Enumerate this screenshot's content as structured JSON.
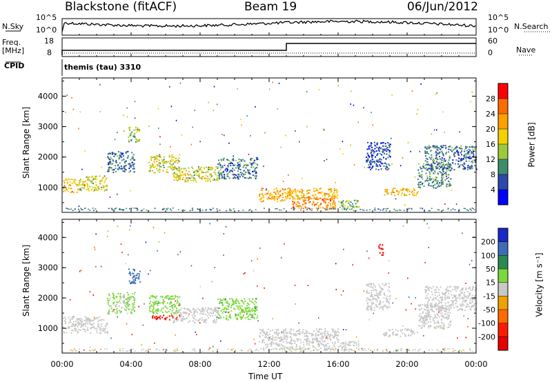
{
  "header": {
    "radar": "Blackstone (fitACF)",
    "beam": "Beam 19",
    "date": "06/Jun/2012"
  },
  "param_panel": {
    "nsky_label": "N.Sky",
    "nsearch_label": "N.Search",
    "freq_label_line1": "Freq.",
    "freq_label_line2": "[MHz]",
    "nave_label": "Nave",
    "cpid_label": "CPID",
    "cpid_value": "themis (tau) 3310",
    "noise_ticks": [
      "10^5",
      "10^0"
    ],
    "noise_ticks_right": [
      "10^5",
      "10^0"
    ],
    "freq_ticks": [
      "18",
      "8"
    ],
    "nave_ticks": [
      "60",
      "0"
    ],
    "freq_step_hour": 13.0
  },
  "colorbars": {
    "power": {
      "label": "Power [dB]",
      "ticks": [
        "28",
        "24",
        "20",
        "16",
        "12",
        "8",
        "4"
      ],
      "colors": [
        "#ff0000",
        "#ff6a00",
        "#ffa000",
        "#f4d000",
        "#9ec83c",
        "#3c8c6e",
        "#2c48a8",
        "#0000ff"
      ]
    },
    "velocity": {
      "label": "Velocity [m s⁻¹]",
      "ticks": [
        "200",
        "100",
        "50",
        "15",
        "-15",
        "-50",
        "-100",
        "-200"
      ],
      "colors": [
        "#1a28c8",
        "#3c6eb4",
        "#2a8a52",
        "#7cd83c",
        "#c8c8c8",
        "#f0a000",
        "#ff6a00",
        "#ff1a00",
        "#e60000"
      ]
    }
  },
  "chart_data": [
    {
      "type": "heatmap",
      "name": "power",
      "ylabel": "Slant Range [km]",
      "xlabel": "",
      "x_ticks": [
        "00:00",
        "04:00",
        "08:00",
        "12:00",
        "16:00",
        "20:00",
        "00:00"
      ],
      "y_ticks": [
        "1000",
        "2000",
        "3000",
        "4000"
      ],
      "xlim": [
        0,
        24
      ],
      "ylim": [
        180,
        4600
      ],
      "units": "dB",
      "regions": [
        {
          "t0": 0.0,
          "t1": 1.0,
          "r0": 850,
          "r1": 1300,
          "value": 20
        },
        {
          "t0": 1.0,
          "t1": 2.6,
          "r0": 900,
          "r1": 1400,
          "value": 16
        },
        {
          "t0": 2.6,
          "t1": 4.2,
          "r0": 1500,
          "r1": 2200,
          "value": 8
        },
        {
          "t0": 3.8,
          "t1": 4.5,
          "r0": 2500,
          "r1": 3000,
          "value": 14
        },
        {
          "t0": 5.0,
          "t1": 6.8,
          "r0": 1500,
          "r1": 2100,
          "value": 16
        },
        {
          "t0": 6.4,
          "t1": 9.0,
          "r0": 1200,
          "r1": 1700,
          "value": 16
        },
        {
          "t0": 9.0,
          "t1": 11.3,
          "r0": 1300,
          "r1": 2000,
          "value": 8
        },
        {
          "t0": 11.4,
          "t1": 13.2,
          "r0": 550,
          "r1": 1000,
          "value": 22
        },
        {
          "t0": 13.2,
          "t1": 15.8,
          "r0": 300,
          "r1": 700,
          "value": 24
        },
        {
          "t0": 13.0,
          "t1": 16.0,
          "r0": 650,
          "r1": 1000,
          "value": 20
        },
        {
          "t0": 16.0,
          "t1": 17.2,
          "r0": 300,
          "r1": 600,
          "value": 14
        },
        {
          "t0": 17.6,
          "t1": 19.0,
          "r0": 1600,
          "r1": 2500,
          "value": 6
        },
        {
          "t0": 18.6,
          "t1": 20.6,
          "r0": 750,
          "r1": 1000,
          "value": 20
        },
        {
          "t0": 20.6,
          "t1": 22.5,
          "r0": 1000,
          "r1": 1800,
          "value": 10
        },
        {
          "t0": 21.0,
          "t1": 24.0,
          "r0": 1600,
          "r1": 2400,
          "value": 8
        }
      ]
    },
    {
      "type": "heatmap",
      "name": "velocity",
      "ylabel": "Slant Range [km]",
      "xlabel": "Time UT",
      "x_ticks": [
        "00:00",
        "04:00",
        "08:00",
        "12:00",
        "16:00",
        "20:00",
        "00:00"
      ],
      "y_ticks": [
        "1000",
        "2000",
        "3000",
        "4000"
      ],
      "xlim": [
        0,
        24
      ],
      "ylim": [
        180,
        4600
      ],
      "units": "m s-1",
      "regions": [
        {
          "t0": 0.0,
          "t1": 2.6,
          "r0": 850,
          "r1": 1400,
          "value": 0
        },
        {
          "t0": 2.6,
          "t1": 4.2,
          "r0": 1500,
          "r1": 2200,
          "value": 20
        },
        {
          "t0": 3.8,
          "t1": 4.5,
          "r0": 2500,
          "r1": 3000,
          "value": 180
        },
        {
          "t0": 5.0,
          "t1": 6.8,
          "r0": 1300,
          "r1": 1450,
          "value": -200
        },
        {
          "t0": 5.0,
          "t1": 6.8,
          "r0": 1500,
          "r1": 2100,
          "value": 30
        },
        {
          "t0": 6.4,
          "t1": 9.0,
          "r0": 1200,
          "r1": 1700,
          "value": 0
        },
        {
          "t0": 9.0,
          "t1": 11.3,
          "r0": 1300,
          "r1": 2000,
          "value": 40
        },
        {
          "t0": 11.4,
          "t1": 16.0,
          "r0": 300,
          "r1": 1000,
          "value": 0
        },
        {
          "t0": 16.0,
          "t1": 17.2,
          "r0": 300,
          "r1": 600,
          "value": 0
        },
        {
          "t0": 17.6,
          "t1": 19.0,
          "r0": 1600,
          "r1": 2500,
          "value": 0
        },
        {
          "t0": 18.3,
          "t1": 18.6,
          "r0": 3400,
          "r1": 3800,
          "value": -200
        },
        {
          "t0": 18.6,
          "t1": 20.6,
          "r0": 750,
          "r1": 1000,
          "value": 0
        },
        {
          "t0": 20.6,
          "t1": 22.5,
          "r0": 1000,
          "r1": 1800,
          "value": 0
        },
        {
          "t0": 21.0,
          "t1": 24.0,
          "r0": 1600,
          "r1": 2400,
          "value": 0
        }
      ]
    }
  ]
}
